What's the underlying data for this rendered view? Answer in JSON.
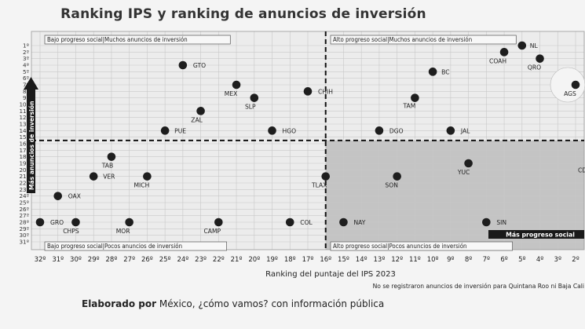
{
  "title": "Ranking IPS y ranking de anuncios de inversión",
  "quadrant_labels": {
    "top_left": "Bajo progreso social|Muchos anuncios de inversión",
    "top_right": "Alto progreso social|Muchos anuncios de inversión",
    "bottom_left": "Bajo progreso social|Pocos anuncios de inversión",
    "bottom_right": "Alto progreso social|Pocos anuncios de inversión"
  },
  "arrow_labels": {
    "y": "Más anuncios de inversión",
    "x": "Más progreso social"
  },
  "footer": {
    "note": "No se registraron anuncios de inversión para Quintana Roo ni Baja Cali",
    "credit_bold": "Elaborado por",
    "credit_rest": " México, ¿cómo vamos? con información pública"
  },
  "chart_data": {
    "type": "scatter",
    "title": "Ranking IPS y ranking de anuncios de inversión",
    "xlabel": "Ranking del puntaje del IPS 2023",
    "ylabel": "Más anuncios de inversión",
    "x_range": [
      32,
      2
    ],
    "y_range": [
      1,
      31
    ],
    "x_ticks": [
      "32º",
      "31º",
      "30º",
      "29º",
      "28º",
      "27º",
      "26º",
      "25º",
      "24º",
      "23º",
      "22º",
      "21º",
      "20º",
      "19º",
      "18º",
      "17º",
      "16º",
      "15º",
      "14º",
      "13º",
      "12º",
      "11º",
      "10º",
      "9º",
      "8º",
      "7º",
      "6º",
      "5º",
      "4º",
      "3º",
      "2º"
    ],
    "y_ticks": [
      "1º",
      "2º",
      "3º",
      "4º",
      "5º",
      "6º",
      "7º",
      "8º",
      "9º",
      "10º",
      "11º",
      "12º",
      "13º",
      "14º",
      "15º",
      "16º",
      "17º",
      "18º",
      "19º",
      "20º",
      "21º",
      "22º",
      "23º",
      "24º",
      "25º",
      "26º",
      "27º",
      "28º",
      "29º",
      "30º",
      "31º"
    ],
    "x_divider": 16,
    "y_divider": 15,
    "grid": true,
    "highlight_quadrant": "bottom-right",
    "points": [
      {
        "label": "NL",
        "x": 5,
        "y": 1
      },
      {
        "label": "COAH",
        "x": 6,
        "y": 2
      },
      {
        "label": "QRO",
        "x": 4,
        "y": 3
      },
      {
        "label": "GTO",
        "x": 24,
        "y": 4
      },
      {
        "label": "BC",
        "x": 10,
        "y": 5
      },
      {
        "label": "MEX",
        "x": 21,
        "y": 7
      },
      {
        "label": "AGS",
        "x": 2,
        "y": 7
      },
      {
        "label": "CHIH",
        "x": 17,
        "y": 8
      },
      {
        "label": "SLP",
        "x": 20,
        "y": 9
      },
      {
        "label": "TAM",
        "x": 11,
        "y": 9
      },
      {
        "label": "ZAL",
        "x": 23,
        "y": 11
      },
      {
        "label": "PUE",
        "x": 25,
        "y": 14
      },
      {
        "label": "HGO",
        "x": 19,
        "y": 14
      },
      {
        "label": "DGO",
        "x": 13,
        "y": 14
      },
      {
        "label": "JAL",
        "x": 9,
        "y": 14
      },
      {
        "label": "TAB",
        "x": 28,
        "y": 18
      },
      {
        "label": "YUC",
        "x": 8,
        "y": 19
      },
      {
        "label": "VER",
        "x": 29,
        "y": 21
      },
      {
        "label": "MICH",
        "x": 26,
        "y": 21
      },
      {
        "label": "TLAX",
        "x": 16,
        "y": 21
      },
      {
        "label": "SON",
        "x": 12,
        "y": 21
      },
      {
        "label": "OAX",
        "x": 31,
        "y": 24
      },
      {
        "label": "GRO",
        "x": 32,
        "y": 28
      },
      {
        "label": "CHPS",
        "x": 30,
        "y": 28
      },
      {
        "label": "MOR",
        "x": 27,
        "y": 28
      },
      {
        "label": "CAMP",
        "x": 22,
        "y": 28
      },
      {
        "label": "COL",
        "x": 18,
        "y": 28
      },
      {
        "label": "NAY",
        "x": 15,
        "y": 28
      },
      {
        "label": "SIN",
        "x": 7,
        "y": 28
      }
    ]
  }
}
